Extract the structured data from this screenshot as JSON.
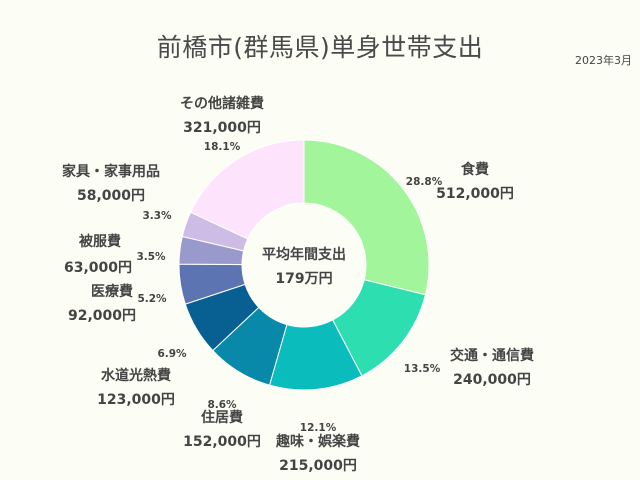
{
  "title": "前橋市(群馬県)単身世帯支出",
  "date": "2023年3月",
  "chart_data": {
    "type": "pie",
    "center": {
      "line1": "平均年間支出",
      "line2": "179万円"
    },
    "slices": [
      {
        "name": "食費",
        "value": 512000,
        "value_label": "512,000円",
        "pct": 28.8,
        "pct_label": "28.8%",
        "color": "#a2f59a"
      },
      {
        "name": "交通・通信費",
        "value": 240000,
        "value_label": "240,000円",
        "pct": 13.5,
        "pct_label": "13.5%",
        "color": "#2ddfb0"
      },
      {
        "name": "趣味・娯楽費",
        "value": 215000,
        "value_label": "215,000円",
        "pct": 12.1,
        "pct_label": "12.1%",
        "color": "#0bbcbc"
      },
      {
        "name": "住居費",
        "value": 152000,
        "value_label": "152,000円",
        "pct": 8.6,
        "pct_label": "8.6%",
        "color": "#0889aa"
      },
      {
        "name": "水道光熱費",
        "value": 123000,
        "value_label": "123,000円",
        "pct": 6.9,
        "pct_label": "6.9%",
        "color": "#075f92"
      },
      {
        "name": "医療費",
        "value": 92000,
        "value_label": "92,000円",
        "pct": 5.2,
        "pct_label": "5.2%",
        "color": "#5d74b3"
      },
      {
        "name": "被服費",
        "value": 63000,
        "value_label": "63,000円",
        "pct": 3.5,
        "pct_label": "3.5%",
        "color": "#9a99cc"
      },
      {
        "name": "家具・家事用品",
        "value": 58000,
        "value_label": "58,000円",
        "pct": 3.3,
        "pct_label": "3.3%",
        "color": "#cdbde6"
      },
      {
        "name": "その他諸雑費",
        "value": 321000,
        "value_label": "321,000円",
        "pct": 18.1,
        "pct_label": "18.1%",
        "color": "#fde3fb"
      }
    ]
  }
}
